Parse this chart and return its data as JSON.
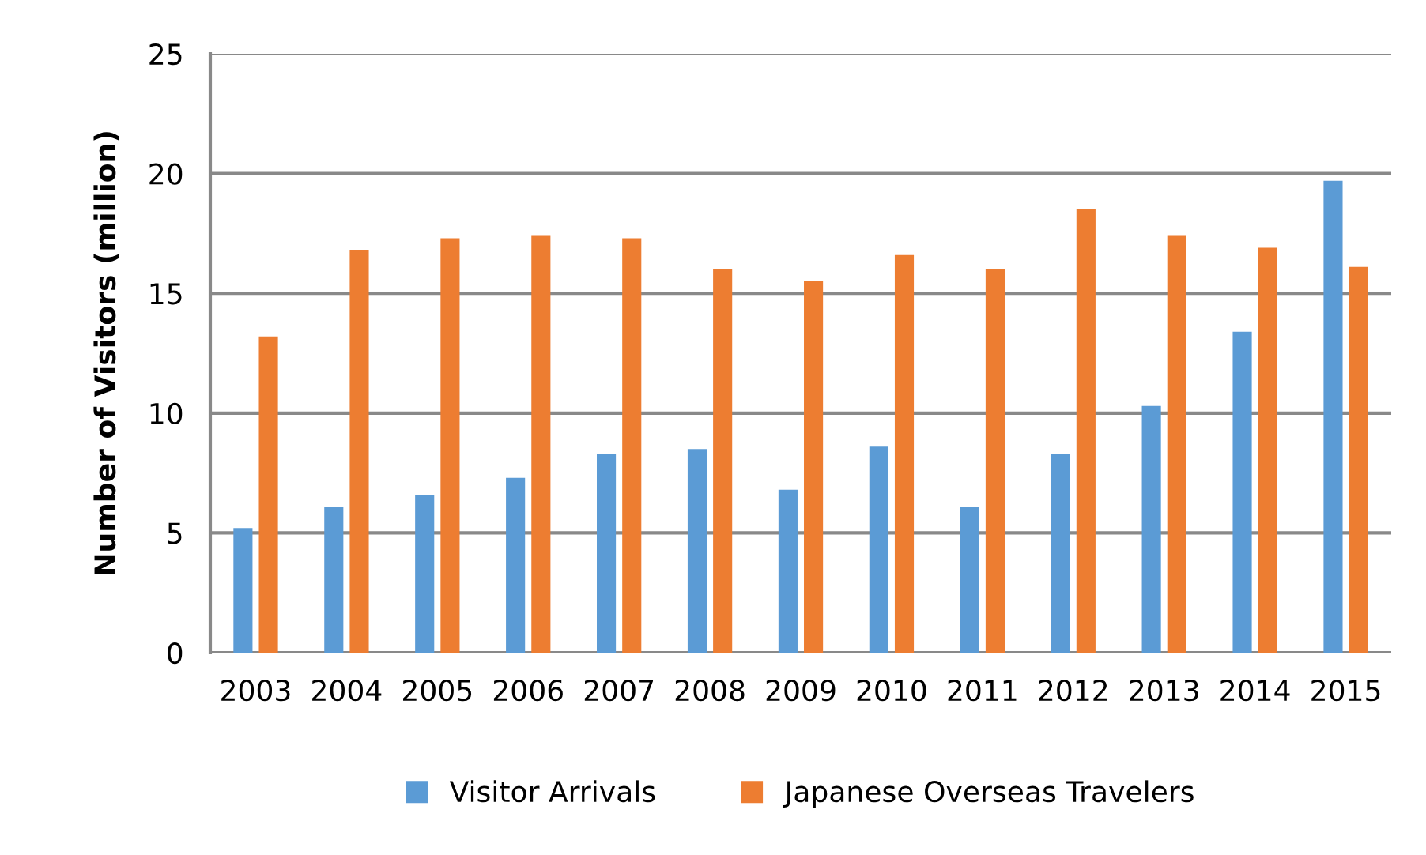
{
  "chart_data": {
    "type": "bar",
    "ylabel": "Number of Visitors (million)",
    "categories": [
      "2003",
      "2004",
      "2005",
      "2006",
      "2007",
      "2008",
      "2009",
      "2010",
      "2011",
      "2012",
      "2013",
      "2014",
      "2015"
    ],
    "series": [
      {
        "name": "Visitor Arrivals",
        "color": "#5b9bd5",
        "values": [
          5.2,
          6.1,
          6.6,
          7.3,
          8.3,
          8.5,
          6.8,
          8.6,
          6.1,
          8.3,
          10.3,
          13.4,
          19.7
        ]
      },
      {
        "name": "Japanese Overseas Travelers",
        "color": "#ed7d31",
        "values": [
          13.2,
          16.8,
          17.3,
          17.4,
          17.3,
          16.0,
          15.5,
          16.6,
          16.0,
          18.5,
          17.4,
          16.9,
          16.1
        ]
      }
    ],
    "ylim": [
      0,
      25
    ],
    "yticks": [
      0,
      5,
      10,
      15,
      20,
      25
    ],
    "grid": "y",
    "legend": "bottom"
  }
}
